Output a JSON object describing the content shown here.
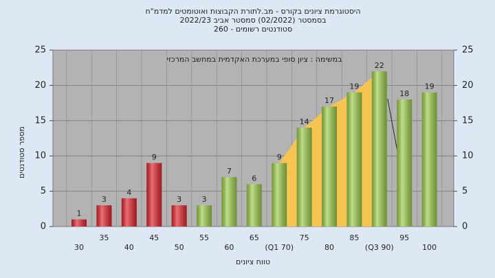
{
  "chart_data": {
    "type": "bar",
    "title_lines": [
      "היסטוגרמת ציונים בקורס - מב.לתורת הקבוצות ואוטומטים למדמ\"ח",
      "בסמסטר  (02/2022)  סמסטר אביב 2022/23",
      "סטודנטים רשומים - 260"
    ],
    "annotation": "במשימה : ציון סופי במערכת האקדמית במחשב המרכזי",
    "ylabel": "מספר סטודנטים",
    "xlabel": "טווח ציונים",
    "categories": [
      "30",
      "35",
      "40",
      "45",
      "50",
      "55",
      "60",
      "65",
      "(Q1 70)",
      "75",
      "80",
      "85",
      "(Q3 90)",
      "95",
      "100"
    ],
    "values": [
      1,
      3,
      4,
      9,
      3,
      3,
      7,
      6,
      9,
      14,
      17,
      19,
      22,
      18,
      19
    ],
    "colors": [
      "#e0232b",
      "#e0232b",
      "#e0232b",
      "#e0232b",
      "#e0232b",
      "#9ccc4a",
      "#9ccc4a",
      "#9ccc4a",
      "#9ccc4a",
      "#9ccc4a",
      "#9ccc4a",
      "#9ccc4a",
      "#9ccc4a",
      "#9ccc4a",
      "#9ccc4a"
    ],
    "area_color": "#f5c451",
    "ylim": [
      0,
      25
    ],
    "yticks": [
      0,
      5,
      10,
      15,
      20,
      25
    ],
    "grid": true
  }
}
